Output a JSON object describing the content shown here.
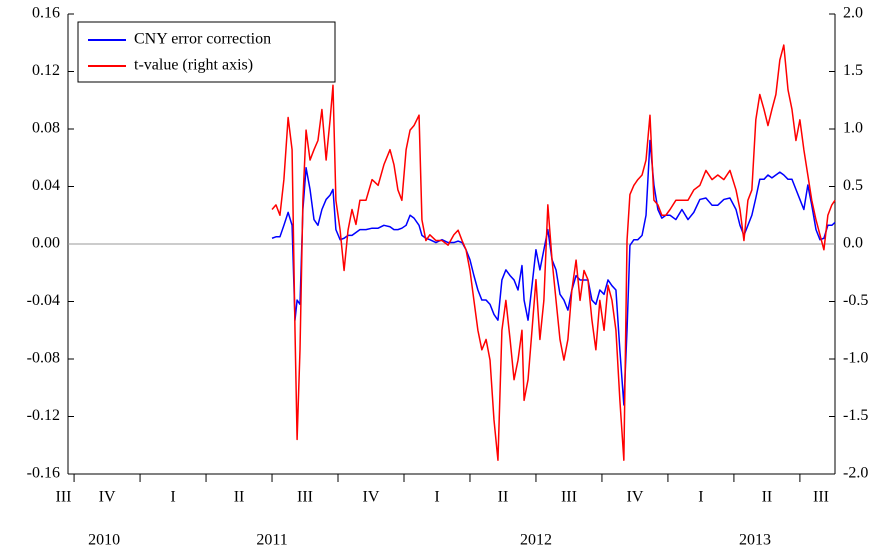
{
  "chart_data": {
    "type": "line",
    "legend": "upper left",
    "zero_line": true,
    "xlim": [
      2010.727,
      2013.633
    ],
    "xticks": [
      {
        "value": 2010.71,
        "label": "III"
      },
      {
        "value": 2010.875,
        "label": "IV"
      },
      {
        "value": 2011.125,
        "label": "I"
      },
      {
        "value": 2011.375,
        "label": "II"
      },
      {
        "value": 2011.625,
        "label": "III"
      },
      {
        "value": 2011.875,
        "label": "IV"
      },
      {
        "value": 2012.125,
        "label": "I"
      },
      {
        "value": 2012.375,
        "label": "II"
      },
      {
        "value": 2012.625,
        "label": "III"
      },
      {
        "value": 2012.875,
        "label": "IV"
      },
      {
        "value": 2013.125,
        "label": "I"
      },
      {
        "value": 2013.375,
        "label": "II"
      },
      {
        "value": 2013.58,
        "label": "III"
      }
    ],
    "xtick_marks": [
      2010.75,
      2011,
      2011.25,
      2011.5,
      2011.75,
      2012,
      2012.25,
      2012.5,
      2012.75,
      2013,
      2013.25,
      2013.5
    ],
    "year_labels": [
      {
        "value": 2010.864,
        "label": "2010"
      },
      {
        "value": 2011.5,
        "label": "2011"
      },
      {
        "value": 2012.5,
        "label": "2012"
      },
      {
        "value": 2013.33,
        "label": "2013"
      }
    ],
    "ylim": [
      -0.16,
      0.16
    ],
    "yticks": [
      0.16,
      0.12,
      0.08,
      0.04,
      {
        "value": 0,
        "label": "0.00"
      },
      -0.04,
      -0.08,
      -0.12,
      -0.16
    ],
    "y2lim": [
      -2,
      2
    ],
    "y2ticks": [
      {
        "value": 2,
        "label": "2.0"
      },
      1.5,
      {
        "value": 1,
        "label": "1.0"
      },
      0.5,
      {
        "value": 0,
        "label": "0.0"
      },
      -0.5,
      {
        "value": -1,
        "label": "-1.0"
      },
      -1.5,
      {
        "value": -2,
        "label": "-2.0"
      }
    ],
    "x": [
      2011.5,
      2011.515,
      2011.53,
      2011.545,
      2011.561,
      2011.576,
      2011.587,
      2011.595,
      2011.606,
      2011.617,
      2011.629,
      2011.644,
      2011.659,
      2011.674,
      2011.689,
      2011.705,
      2011.72,
      2011.731,
      2011.742,
      2011.758,
      2011.773,
      2011.788,
      2011.803,
      2011.818,
      2011.833,
      2011.856,
      2011.879,
      2011.902,
      2011.924,
      2011.947,
      2011.962,
      2011.977,
      2011.992,
      2012.008,
      2012.023,
      2012.038,
      2012.057,
      2012.068,
      2012.083,
      2012.098,
      2012.121,
      2012.144,
      2012.167,
      2012.189,
      2012.205,
      2012.22,
      2012.235,
      2012.25,
      2012.265,
      2012.28,
      2012.295,
      2012.311,
      2012.326,
      2012.341,
      2012.356,
      2012.371,
      2012.386,
      2012.402,
      2012.417,
      2012.432,
      2012.447,
      2012.455,
      2012.47,
      2012.485,
      2012.5,
      2012.515,
      2012.53,
      2012.545,
      2012.561,
      2012.576,
      2012.591,
      2012.606,
      2012.621,
      2012.636,
      2012.652,
      2012.667,
      2012.682,
      2012.697,
      2012.712,
      2012.727,
      2012.742,
      2012.758,
      2012.773,
      2012.788,
      2012.803,
      2012.818,
      2012.833,
      2012.845,
      2012.856,
      2012.871,
      2012.886,
      2012.902,
      2012.917,
      2012.932,
      2012.947,
      2012.962,
      2012.977,
      2012.992,
      2013.008,
      2013.03,
      2013.053,
      2013.076,
      2013.098,
      2013.121,
      2013.144,
      2013.167,
      2013.189,
      2013.212,
      2013.235,
      2013.258,
      2013.273,
      2013.288,
      2013.303,
      2013.318,
      2013.333,
      2013.348,
      2013.364,
      2013.379,
      2013.394,
      2013.409,
      2013.424,
      2013.439,
      2013.455,
      2013.47,
      2013.485,
      2013.5,
      2013.515,
      2013.53,
      2013.545,
      2013.561,
      2013.576,
      2013.591,
      2013.606,
      2013.621,
      2013.633
    ],
    "series": [
      {
        "name": "CNY error correction",
        "color": "#0000ff",
        "values": [
          0.004,
          0.005,
          0.005,
          0.013,
          0.022,
          0.013,
          -0.053,
          -0.039,
          -0.042,
          0.024,
          0.053,
          0.038,
          0.017,
          0.013,
          0.024,
          0.031,
          0.034,
          0.038,
          0.01,
          0.003,
          0.004,
          0.006,
          0.006,
          0.008,
          0.01,
          0.01,
          0.011,
          0.011,
          0.013,
          0.012,
          0.01,
          0.01,
          0.011,
          0.013,
          0.02,
          0.018,
          0.013,
          0.006,
          0.004,
          0.003,
          0.001,
          0.003,
          0.001,
          0.001,
          0.002,
          0.001,
          -0.004,
          -0.011,
          -0.022,
          -0.032,
          -0.039,
          -0.039,
          -0.042,
          -0.049,
          -0.053,
          -0.025,
          -0.018,
          -0.022,
          -0.025,
          -0.032,
          -0.015,
          -0.039,
          -0.053,
          -0.029,
          -0.004,
          -0.018,
          -0.004,
          0.01,
          -0.011,
          -0.018,
          -0.035,
          -0.039,
          -0.046,
          -0.032,
          -0.022,
          -0.025,
          -0.025,
          -0.025,
          -0.039,
          -0.042,
          -0.032,
          -0.035,
          -0.025,
          -0.029,
          -0.032,
          -0.074,
          -0.112,
          -0.06,
          -0.001,
          0.003,
          0.003,
          0.006,
          0.02,
          0.072,
          0.041,
          0.024,
          0.018,
          0.02,
          0.02,
          0.017,
          0.024,
          0.017,
          0.022,
          0.031,
          0.032,
          0.027,
          0.027,
          0.031,
          0.032,
          0.024,
          0.013,
          0.006,
          0.013,
          0.02,
          0.032,
          0.045,
          0.045,
          0.048,
          0.046,
          0.048,
          0.05,
          0.048,
          0.045,
          0.045,
          0.038,
          0.031,
          0.024,
          0.041,
          0.027,
          0.01,
          0.003,
          0.004,
          0.013,
          0.013,
          0.015
        ]
      },
      {
        "name": "t-value (right axis)",
        "color": "#ff0000",
        "axis": "y2",
        "values": [
          0.3,
          0.34,
          0.25,
          0.56,
          1.1,
          0.82,
          -0.75,
          -1.7,
          -0.92,
          0.38,
          0.99,
          0.73,
          0.82,
          0.9,
          1.17,
          0.73,
          1.08,
          1.38,
          0.38,
          0.12,
          -0.23,
          0.12,
          0.3,
          0.17,
          0.38,
          0.38,
          0.56,
          0.51,
          0.69,
          0.82,
          0.69,
          0.47,
          0.38,
          0.82,
          0.99,
          1.03,
          1.12,
          0.21,
          0.03,
          0.08,
          0.03,
          0.03,
          -0.01,
          0.08,
          0.12,
          0.03,
          -0.05,
          -0.23,
          -0.49,
          -0.75,
          -0.92,
          -0.83,
          -1.01,
          -1.53,
          -1.88,
          -0.75,
          -0.49,
          -0.83,
          -1.18,
          -1.01,
          -0.75,
          -1.36,
          -1.18,
          -0.75,
          -0.31,
          -0.83,
          -0.49,
          0.34,
          -0.14,
          -0.49,
          -0.83,
          -1.01,
          -0.83,
          -0.4,
          -0.14,
          -0.49,
          -0.23,
          -0.31,
          -0.66,
          -0.92,
          -0.49,
          -0.75,
          -0.36,
          -0.49,
          -0.75,
          -1.36,
          -1.88,
          0.03,
          0.43,
          0.51,
          0.56,
          0.6,
          0.73,
          1.12,
          0.38,
          0.34,
          0.25,
          0.25,
          0.3,
          0.38,
          0.38,
          0.38,
          0.47,
          0.51,
          0.64,
          0.56,
          0.6,
          0.56,
          0.64,
          0.47,
          0.3,
          0.03,
          0.38,
          0.47,
          1.08,
          1.3,
          1.17,
          1.03,
          1.17,
          1.3,
          1.6,
          1.73,
          1.34,
          1.17,
          0.9,
          1.08,
          0.82,
          0.6,
          0.38,
          0.21,
          0.08,
          -0.05,
          0.25,
          0.34,
          0.38
        ]
      }
    ]
  }
}
